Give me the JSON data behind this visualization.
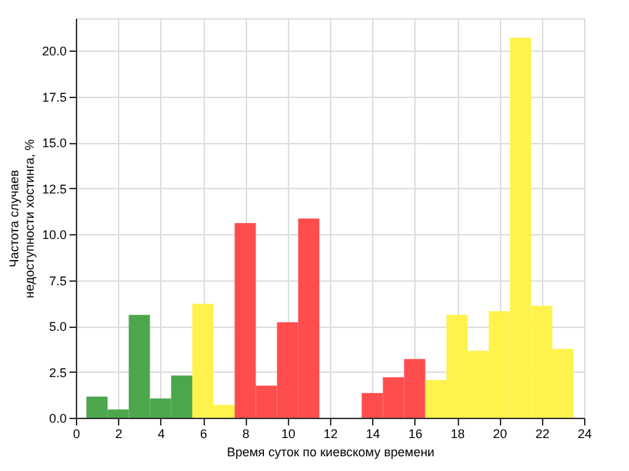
{
  "chart_data": {
    "type": "histogram",
    "xlabel": "Время суток по киевскому времени",
    "ylabel": "Частота случаев\nнедоступности хостинга, %",
    "bins": [
      0.5,
      1.5,
      2.5,
      3.5,
      4.5,
      5.5,
      6.5,
      7.5,
      8.5,
      9.5,
      10.5,
      11.5,
      12.5,
      13.5,
      14.5,
      15.5,
      16.5,
      17.5,
      18.5,
      19.5,
      20.5,
      21.5,
      22.5,
      23.5
    ],
    "values": [
      1.15,
      0.45,
      5.6,
      1.05,
      2.3,
      6.2,
      0.7,
      10.6,
      1.75,
      5.2,
      10.85,
      0,
      0,
      1.35,
      2.2,
      3.2,
      2.05,
      5.6,
      3.65,
      5.8,
      20.7,
      6.1,
      3.75
    ],
    "colors": [
      "#4ca64c",
      "#4ca64c",
      "#4ca64c",
      "#4ca64c",
      "#4ca64c",
      "#fff24c",
      "#fff24c",
      "#ff4c4c",
      "#ff4c4c",
      "#ff4c4c",
      "#ff4c4c",
      "#ff4c4c",
      "#ff4c4c",
      "#ff4c4c",
      "#ff4c4c",
      "#ff4c4c",
      "#fff24c",
      "#fff24c",
      "#fff24c",
      "#fff24c",
      "#fff24c",
      "#fff24c",
      "#fff24c"
    ],
    "xlim": [
      0,
      24
    ],
    "xticks": [
      0,
      2,
      4,
      6,
      8,
      10,
      12,
      14,
      16,
      18,
      20,
      22,
      24
    ],
    "ylim": [
      0,
      21.76
    ],
    "yticks": [
      {
        "value": 0,
        "label": "0.0"
      },
      {
        "value": 2.5,
        "label": "2.5"
      },
      {
        "value": 5,
        "label": "5.0"
      },
      {
        "value": 7.5,
        "label": "7.5"
      },
      {
        "value": 10,
        "label": "10.0"
      },
      {
        "value": 12.5,
        "label": "12.5"
      },
      {
        "value": 15,
        "label": "15.0"
      },
      {
        "value": 17.5,
        "label": "17.5"
      },
      {
        "value": 20,
        "label": "20.0"
      }
    ],
    "grid": true
  }
}
